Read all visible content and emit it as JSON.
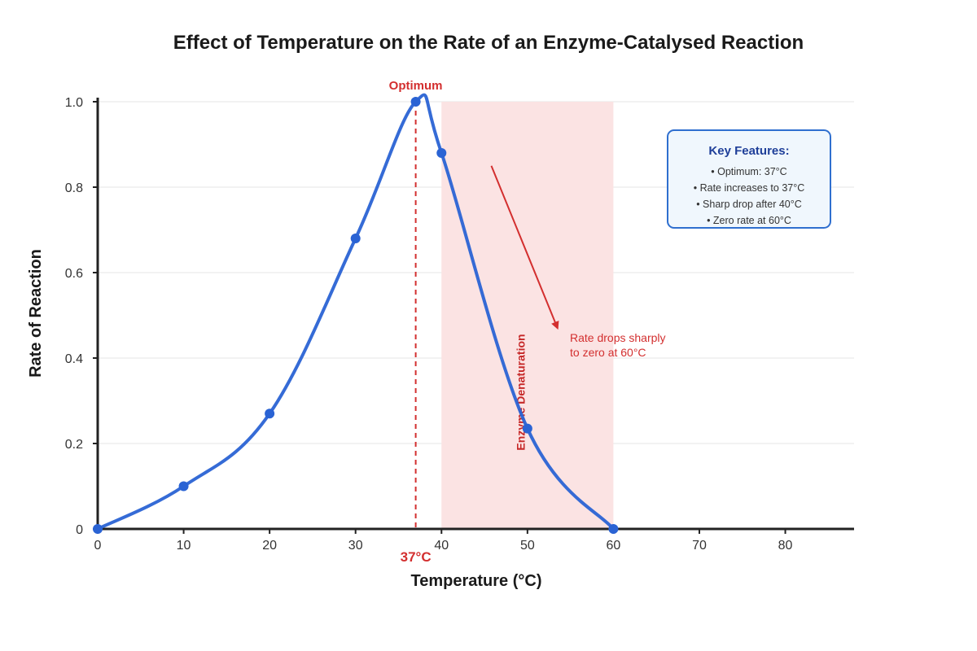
{
  "chart_data": {
    "type": "line",
    "title": "Effect of Temperature on the Rate of an Enzyme-Catalysed Reaction",
    "xlabel": "Temperature (°C)",
    "ylabel": "Rate of Reaction",
    "xlim": [
      0,
      88
    ],
    "ylim": [
      0,
      1.0
    ],
    "x_ticks": [
      0,
      10,
      20,
      30,
      40,
      50,
      60,
      70,
      80
    ],
    "x_tick_labels": [
      "0",
      "10",
      "20",
      "30",
      "40",
      "50",
      "60",
      "70",
      "80"
    ],
    "y_ticks": [
      0,
      0.2,
      0.4,
      0.6,
      0.8,
      1.0
    ],
    "y_tick_labels": [
      "0",
      "0.2",
      "0.4",
      "0.6",
      "0.8",
      "1.0"
    ],
    "grid": "horizontal",
    "series": [
      {
        "x": [
          0,
          10,
          20,
          30,
          37,
          40,
          50,
          60
        ],
        "y": [
          0,
          0.1,
          0.27,
          0.68,
          1.0,
          0.88,
          0.235,
          0
        ],
        "color": "#2a63d4"
      }
    ],
    "shaded_region": {
      "x_start": 40,
      "x_end": 60,
      "color": "#fbe3e3",
      "label": "Enzyme Denaturation"
    },
    "optimum": {
      "x": 37,
      "top_label": "Optimum",
      "axis_label": "37°C",
      "color": "#d32f2f"
    },
    "annotation": {
      "lines": [
        "Rate drops sharply",
        "to zero at 60°C"
      ],
      "arrow_from": [
        45.8,
        0.85
      ],
      "arrow_to": [
        53.5,
        0.47
      ]
    },
    "key_features": {
      "title": "Key Features:",
      "items": [
        "• Optimum: 37°C",
        "• Rate increases to 37°C",
        "• Sharp drop after 40°C",
        "• Zero rate at 60°C"
      ]
    }
  }
}
